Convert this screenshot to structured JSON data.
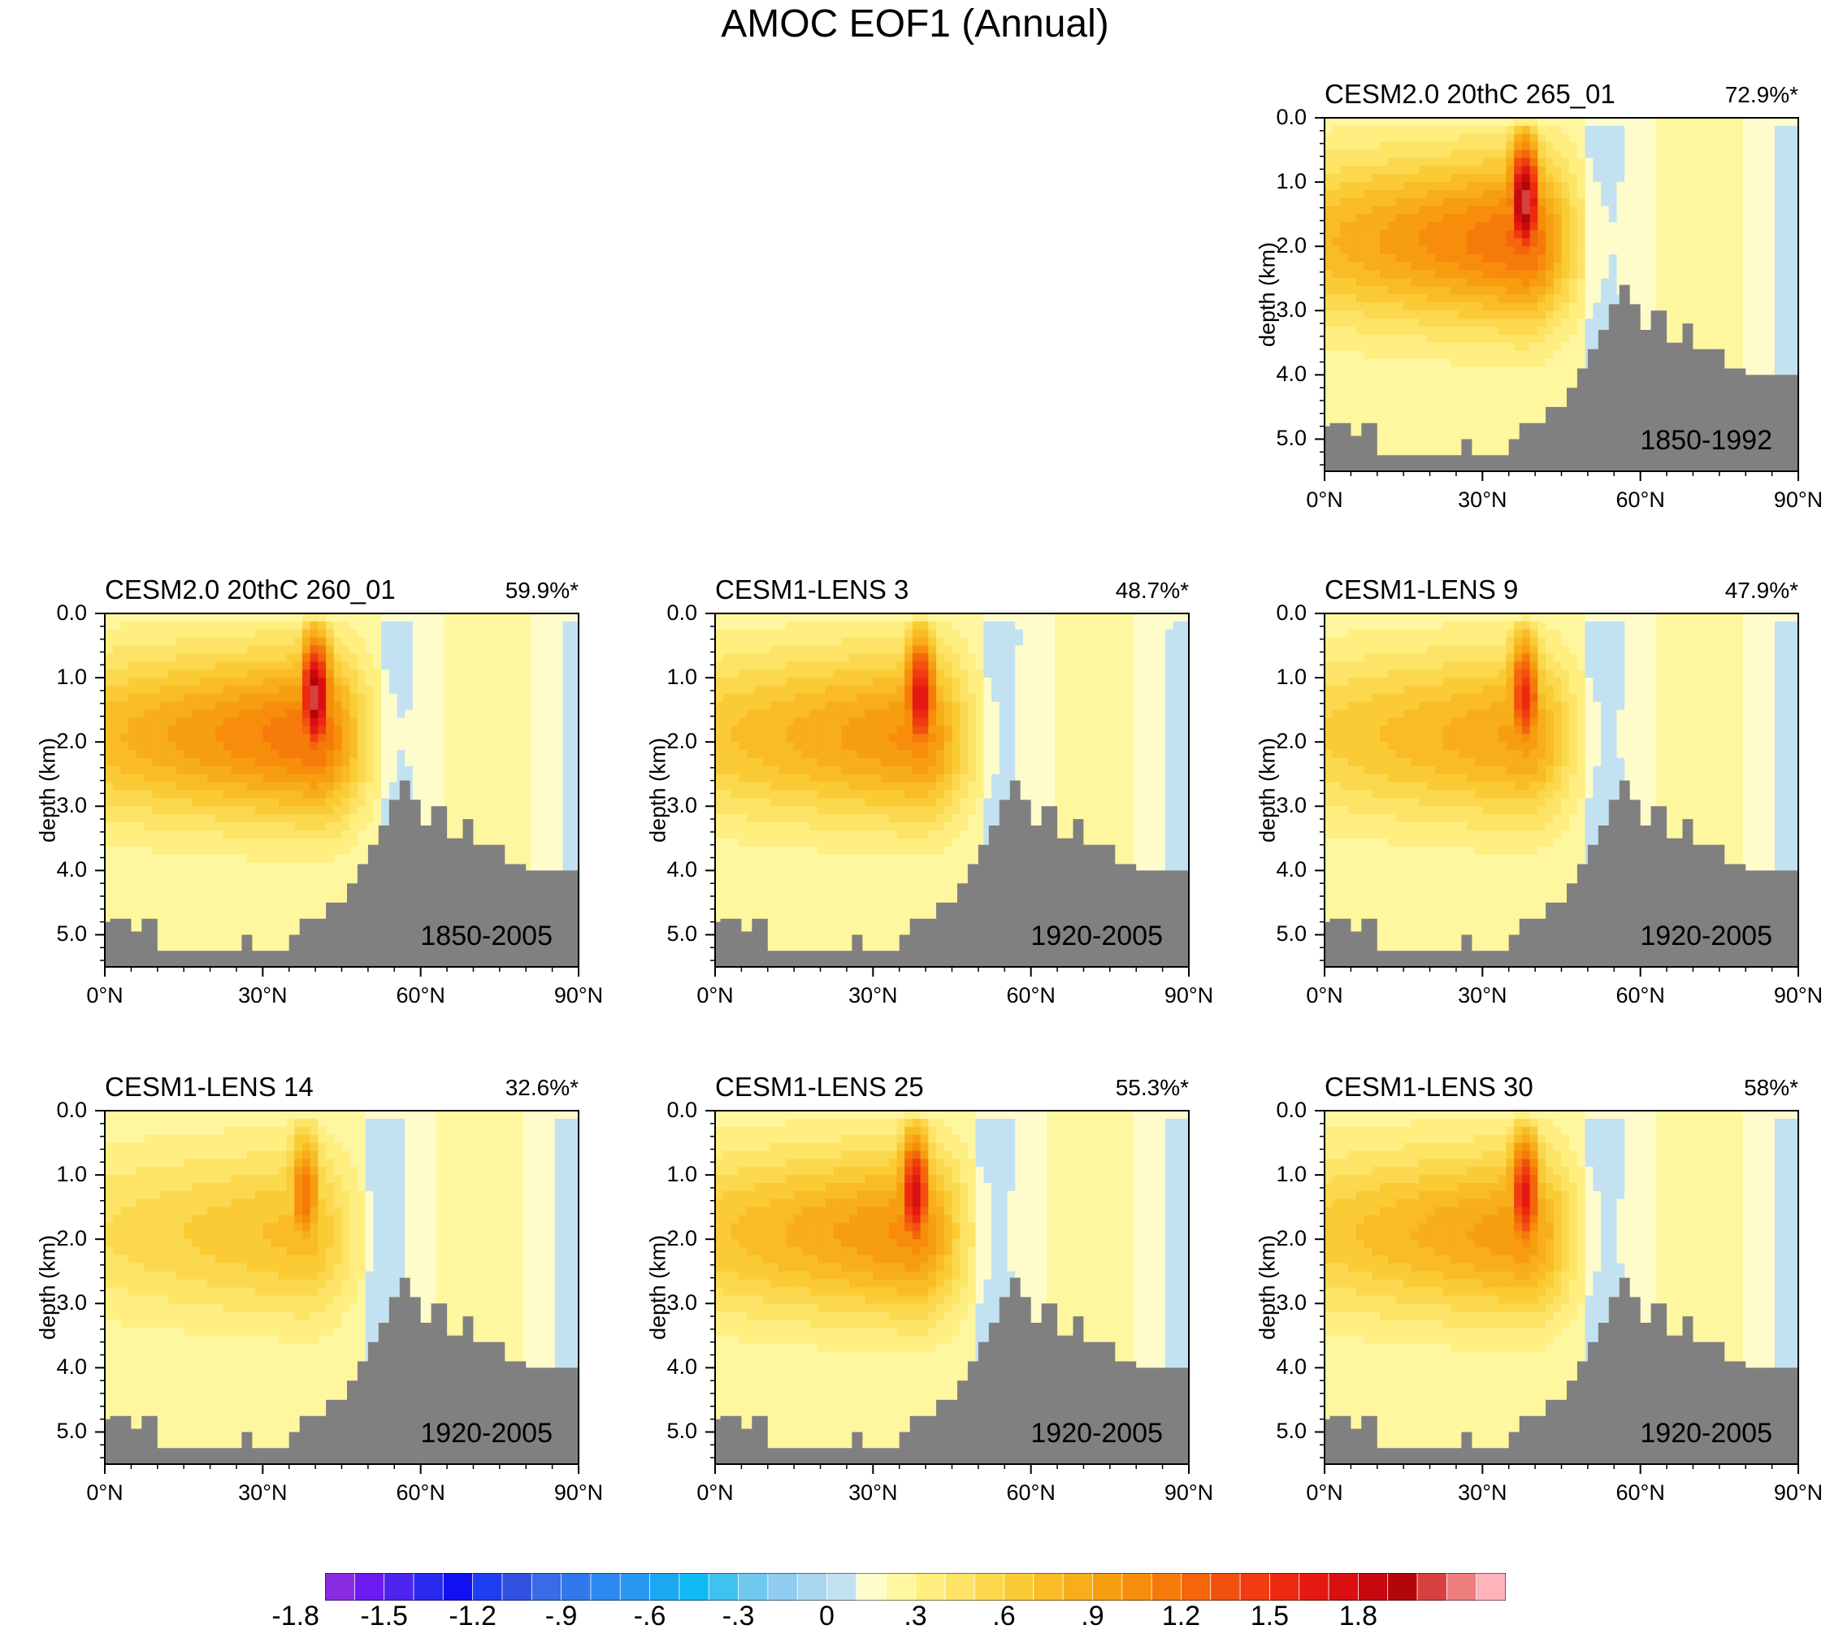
{
  "title": "AMOC EOF1 (Annual)",
  "chart_data": [
    {
      "type": "heatmap",
      "title": "CESM2.0 20thC 265_01",
      "variance": "72.9%*",
      "period": "1850-1992",
      "xlabel": "",
      "ylabel": "depth (km)",
      "xticks": [
        "0°N",
        "30°N",
        "60°N",
        "90°N"
      ],
      "yticks": [
        "0.0",
        "1.0",
        "2.0",
        "3.0",
        "4.0",
        "5.0"
      ],
      "xlim": [
        0,
        90
      ],
      "ylim": [
        5.5,
        0
      ],
      "peak": 1.9,
      "core_lat": 38
    },
    {
      "type": "heatmap",
      "title": "CESM2.0 20thC 260_01",
      "variance": "59.9%*",
      "period": "1850-2005",
      "xlabel": "",
      "ylabel": "depth (km)",
      "xticks": [
        "0°N",
        "30°N",
        "60°N",
        "90°N"
      ],
      "yticks": [
        "0.0",
        "1.0",
        "2.0",
        "3.0",
        "4.0",
        "5.0"
      ],
      "xlim": [
        0,
        90
      ],
      "ylim": [
        5.5,
        0
      ],
      "peak": 1.85,
      "core_lat": 40
    },
    {
      "type": "heatmap",
      "title": "CESM1-LENS 3",
      "variance": "48.7%*",
      "period": "1920-2005",
      "xlabel": "",
      "ylabel": "depth (km)",
      "xticks": [
        "0°N",
        "30°N",
        "60°N",
        "90°N"
      ],
      "yticks": [
        "0.0",
        "1.0",
        "2.0",
        "3.0",
        "4.0",
        "5.0"
      ],
      "xlim": [
        0,
        90
      ],
      "ylim": [
        5.5,
        0
      ],
      "peak": 1.55,
      "core_lat": 39
    },
    {
      "type": "heatmap",
      "title": "CESM1-LENS 9",
      "variance": "47.9%*",
      "period": "1920-2005",
      "xlabel": "",
      "ylabel": "depth (km)",
      "xticks": [
        "0°N",
        "30°N",
        "60°N",
        "90°N"
      ],
      "yticks": [
        "0.0",
        "1.0",
        "2.0",
        "3.0",
        "4.0",
        "5.0"
      ],
      "xlim": [
        0,
        90
      ],
      "ylim": [
        5.5,
        0
      ],
      "peak": 1.35,
      "core_lat": 38
    },
    {
      "type": "heatmap",
      "title": "CESM1-LENS 14",
      "variance": "32.6%*",
      "period": "1920-2005",
      "xlabel": "",
      "ylabel": "depth (km)",
      "xticks": [
        "0°N",
        "30°N",
        "60°N",
        "90°N"
      ],
      "yticks": [
        "0.0",
        "1.0",
        "2.0",
        "3.0",
        "4.0",
        "5.0"
      ],
      "xlim": [
        0,
        90
      ],
      "ylim": [
        5.5,
        0
      ],
      "peak": 1.0,
      "core_lat": 38
    },
    {
      "type": "heatmap",
      "title": "CESM1-LENS 25",
      "variance": "55.3%*",
      "period": "1920-2005",
      "xlabel": "",
      "ylabel": "depth (km)",
      "xticks": [
        "0°N",
        "30°N",
        "60°N",
        "90°N"
      ],
      "yticks": [
        "0.0",
        "1.0",
        "2.0",
        "3.0",
        "4.0",
        "5.0"
      ],
      "xlim": [
        0,
        90
      ],
      "ylim": [
        5.5,
        0
      ],
      "peak": 1.55,
      "core_lat": 38
    },
    {
      "type": "heatmap",
      "title": "CESM1-LENS 30",
      "variance": "58%*",
      "period": "1920-2005",
      "xlabel": "",
      "ylabel": "depth (km)",
      "xticks": [
        "0°N",
        "30°N",
        "60°N",
        "90°N"
      ],
      "yticks": [
        "0.0",
        "1.0",
        "2.0",
        "3.0",
        "4.0",
        "5.0"
      ],
      "xlim": [
        0,
        90
      ],
      "ylim": [
        5.5,
        0
      ],
      "peak": 1.45,
      "core_lat": 38
    }
  ],
  "colorbar": {
    "labels": [
      "-1.8",
      "-1.5",
      "-1.2",
      "-.9",
      "-.6",
      "-.3",
      "0",
      ".3",
      ".6",
      ".9",
      "1.2",
      "1.5",
      "1.8"
    ],
    "levels": [
      -1.8,
      -1.5,
      -1.2,
      -0.9,
      -0.6,
      -0.3,
      0,
      0.3,
      0.6,
      0.9,
      1.2,
      1.5,
      1.8
    ],
    "colors": [
      "#8a2be2",
      "#6a1bf0",
      "#4d24f0",
      "#2a2aef",
      "#1010f0",
      "#1e3ef0",
      "#3050e0",
      "#3a6ae8",
      "#3079ec",
      "#2d88ef",
      "#2a98f0",
      "#1aa8f3",
      "#10baf5",
      "#40c2f0",
      "#70c8ee",
      "#8ecdf0",
      "#a8d7ef",
      "#c2e2f2",
      "#fffccc",
      "#fff6a0",
      "#ffee80",
      "#fde466",
      "#fbd84e",
      "#fbcb36",
      "#f9bc26",
      "#f8ad1a",
      "#f79e10",
      "#f78d0a",
      "#f67a0a",
      "#f4650c",
      "#f2500e",
      "#f03c10",
      "#ed2a10",
      "#e61912",
      "#d90f12",
      "#c60a10",
      "#b30608",
      "#d84040",
      "#ee7e7e",
      "#ffb3bb"
    ]
  }
}
